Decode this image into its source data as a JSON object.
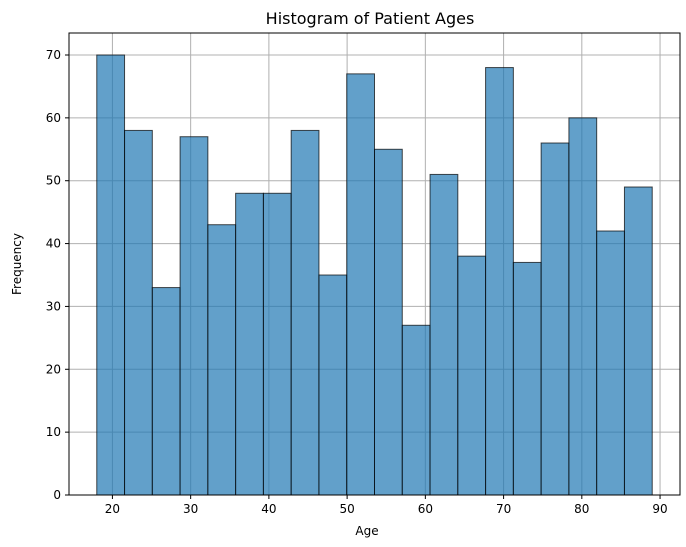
{
  "chart_data": {
    "type": "bar",
    "title": "Histogram of Patient Ages",
    "xlabel": "Age",
    "ylabel": "Frequency",
    "xlim": [
      14.45,
      92.55
    ],
    "ylim": [
      0,
      73.5
    ],
    "grid": true,
    "colors": {
      "bar_fill": "#1f77b4",
      "bar_edge": "#000000",
      "grid": "#b0b0b0"
    },
    "bins": {
      "edges": [
        18,
        21.55,
        25.1,
        28.65,
        32.2,
        35.75,
        39.3,
        42.85,
        46.4,
        49.95,
        53.5,
        57.05,
        60.6,
        64.15,
        67.7,
        71.25,
        74.8,
        78.35,
        81.9,
        85.45,
        89
      ],
      "values": [
        70,
        58,
        33,
        57,
        43,
        48,
        48,
        58,
        35,
        67,
        55,
        27,
        51,
        38,
        68,
        37,
        56,
        60,
        42,
        49
      ]
    },
    "x_ticks": [
      20,
      30,
      40,
      50,
      60,
      70,
      80,
      90
    ],
    "y_ticks": [
      0,
      10,
      20,
      30,
      40,
      50,
      60,
      70
    ]
  }
}
